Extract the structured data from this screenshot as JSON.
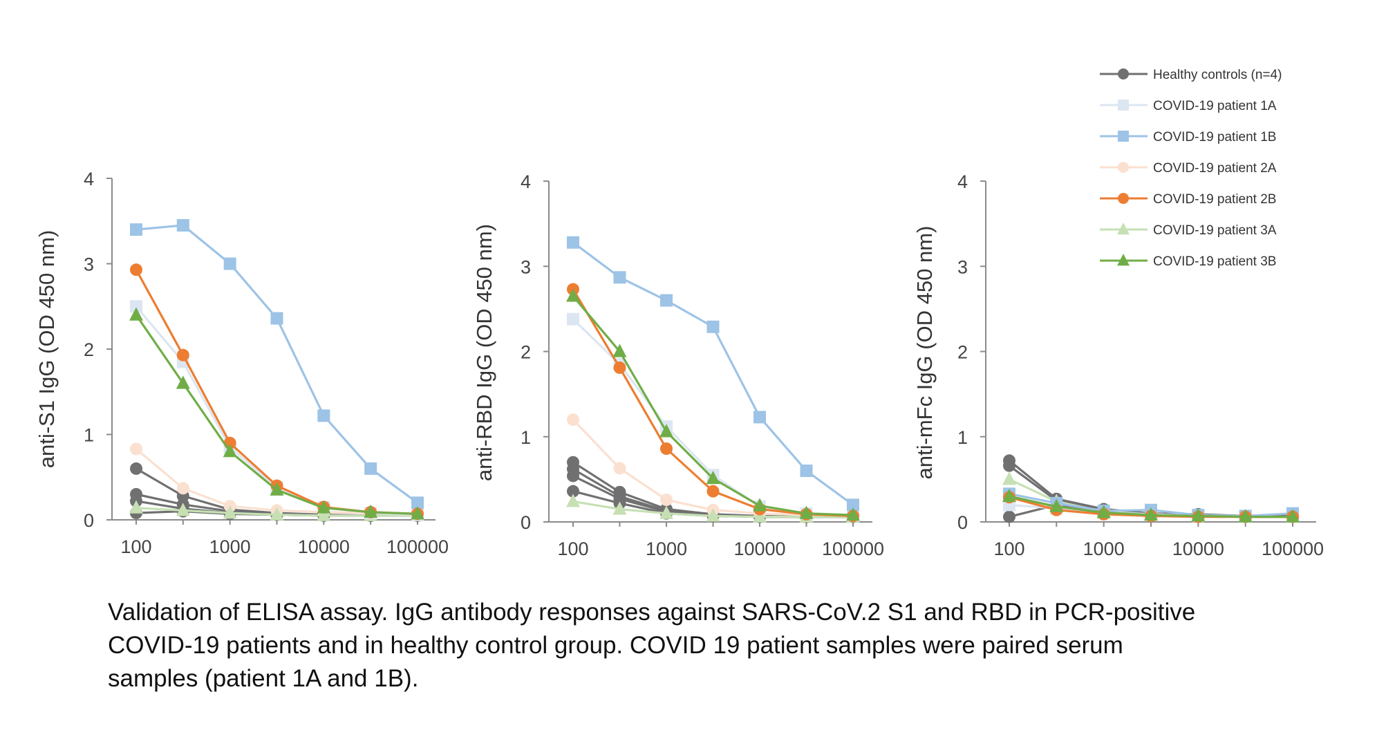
{
  "colors": {
    "healthy": "#707070",
    "p1A": "#dce6f2",
    "p1B": "#9dc3e6",
    "p2A": "#fbe0d0",
    "p2B": "#ed7d31",
    "p3A": "#c6e0b4",
    "p3B": "#70ad47",
    "axis": "#8a8a8a"
  },
  "legend": [
    {
      "key": "healthy",
      "label": "Healthy controls (n=4)",
      "marker": "circle",
      "color": "#707070"
    },
    {
      "key": "p1A",
      "label": "COVID-19 patient 1A",
      "marker": "square",
      "color": "#dce6f2"
    },
    {
      "key": "p1B",
      "label": "COVID-19 patient 1B",
      "marker": "square",
      "color": "#9dc3e6"
    },
    {
      "key": "p2A",
      "label": "COVID-19 patient 2A",
      "marker": "circle",
      "color": "#fbe0d0"
    },
    {
      "key": "p2B",
      "label": "COVID-19 patient 2B",
      "marker": "circle",
      "color": "#ed7d31"
    },
    {
      "key": "p3A",
      "label": "COVID-19 patient 3A",
      "marker": "triangle",
      "color": "#c6e0b4"
    },
    {
      "key": "p3B",
      "label": "COVID-19 patient 3B",
      "marker": "triangle",
      "color": "#70ad47"
    }
  ],
  "caption": [
    "Validation of ELISA assay. IgG antibody responses against SARS-CoV.2 S1 and RBD in PCR-positive",
    "COVID-19 patients and in healthy control group. COVID 19 patient samples were paired serum",
    "samples (patient 1A and 1B)."
  ],
  "chart_data": [
    {
      "type": "line",
      "title": "",
      "xlabel": "",
      "ylabel": "anti-S1 IgG (OD 450 nm)",
      "x": [
        100,
        316,
        1000,
        3162,
        10000,
        31623,
        100000
      ],
      "x_scale": "log",
      "x_ticks": [
        "100",
        "1000",
        "10000",
        "100000"
      ],
      "y_ticks": [
        "0",
        "1",
        "2",
        "3",
        "4"
      ],
      "ylim": [
        0,
        4
      ],
      "series": [
        {
          "key": "healthy",
          "values": [
            0.6,
            0.28,
            0.12,
            0.08,
            0.06,
            0.05,
            0.05
          ]
        },
        {
          "key": "healthy",
          "values": [
            0.3,
            0.18,
            0.1,
            0.07,
            0.05,
            0.05,
            0.05
          ]
        },
        {
          "key": "healthy",
          "values": [
            0.22,
            0.13,
            0.08,
            0.06,
            0.05,
            0.05,
            0.05
          ]
        },
        {
          "key": "healthy",
          "values": [
            0.08,
            0.1,
            0.07,
            0.06,
            0.05,
            0.05,
            0.05
          ]
        },
        {
          "key": "p1A",
          "values": [
            2.5,
            1.85,
            0.85,
            0.38,
            0.15,
            0.08,
            0.06
          ]
        },
        {
          "key": "p1B",
          "values": [
            3.4,
            3.45,
            3.0,
            2.36,
            1.22,
            0.6,
            0.2
          ]
        },
        {
          "key": "p2A",
          "values": [
            0.83,
            0.37,
            0.16,
            0.11,
            0.09,
            0.08,
            0.07
          ]
        },
        {
          "key": "p2B",
          "values": [
            2.93,
            1.93,
            0.9,
            0.4,
            0.15,
            0.09,
            0.07
          ]
        },
        {
          "key": "p3A",
          "values": [
            0.14,
            0.11,
            0.08,
            0.06,
            0.05,
            0.05,
            0.05
          ]
        },
        {
          "key": "p3B",
          "values": [
            2.4,
            1.6,
            0.8,
            0.35,
            0.14,
            0.09,
            0.07
          ]
        }
      ]
    },
    {
      "type": "line",
      "title": "",
      "xlabel": "",
      "ylabel": "anti-RBD IgG (OD 450 nm)",
      "x": [
        100,
        316,
        1000,
        3162,
        10000,
        31623,
        100000
      ],
      "x_scale": "log",
      "x_ticks": [
        "100",
        "1000",
        "10000",
        "100000"
      ],
      "y_ticks": [
        "0",
        "1",
        "2",
        "3",
        "4"
      ],
      "ylim": [
        0,
        4
      ],
      "series": [
        {
          "key": "healthy",
          "values": [
            0.7,
            0.35,
            0.15,
            0.09,
            0.07,
            0.06,
            0.06
          ]
        },
        {
          "key": "healthy",
          "values": [
            0.62,
            0.3,
            0.13,
            0.08,
            0.06,
            0.06,
            0.06
          ]
        },
        {
          "key": "healthy",
          "values": [
            0.54,
            0.27,
            0.12,
            0.08,
            0.06,
            0.06,
            0.06
          ]
        },
        {
          "key": "healthy",
          "values": [
            0.36,
            0.22,
            0.1,
            0.07,
            0.06,
            0.06,
            0.06
          ]
        },
        {
          "key": "p1A",
          "values": [
            2.38,
            1.85,
            1.12,
            0.55,
            0.18,
            0.1,
            0.08
          ]
        },
        {
          "key": "p1B",
          "values": [
            3.28,
            2.87,
            2.6,
            2.29,
            1.23,
            0.6,
            0.2
          ]
        },
        {
          "key": "p2A",
          "values": [
            1.2,
            0.63,
            0.26,
            0.14,
            0.1,
            0.08,
            0.07
          ]
        },
        {
          "key": "p2B",
          "values": [
            2.73,
            1.81,
            0.86,
            0.36,
            0.15,
            0.09,
            0.07
          ]
        },
        {
          "key": "p3A",
          "values": [
            0.24,
            0.15,
            0.1,
            0.07,
            0.06,
            0.06,
            0.06
          ]
        },
        {
          "key": "p3B",
          "values": [
            2.65,
            2.0,
            1.06,
            0.51,
            0.19,
            0.1,
            0.08
          ]
        }
      ]
    },
    {
      "type": "line",
      "title": "",
      "xlabel": "",
      "ylabel": "anti-mFc IgG (OD 450 nm)",
      "x": [
        100,
        316,
        1000,
        3162,
        10000,
        31623,
        100000
      ],
      "x_scale": "log",
      "x_ticks": [
        "100",
        "1000",
        "10000",
        "100000"
      ],
      "y_ticks": [
        "0",
        "1",
        "2",
        "3",
        "4"
      ],
      "ylim": [
        0,
        4
      ],
      "series": [
        {
          "key": "healthy",
          "values": [
            0.72,
            0.27,
            0.15,
            0.1,
            0.09,
            0.07,
            0.07
          ]
        },
        {
          "key": "healthy",
          "values": [
            0.66,
            0.25,
            0.14,
            0.09,
            0.08,
            0.07,
            0.07
          ]
        },
        {
          "key": "healthy",
          "values": [
            0.3,
            0.18,
            0.1,
            0.08,
            0.07,
            0.06,
            0.06
          ]
        },
        {
          "key": "healthy",
          "values": [
            0.06,
            0.2,
            0.11,
            0.08,
            0.07,
            0.06,
            0.06
          ]
        },
        {
          "key": "p1A",
          "values": [
            0.2,
            0.16,
            0.11,
            0.09,
            0.07,
            0.06,
            0.06
          ]
        },
        {
          "key": "p1B",
          "values": [
            0.33,
            0.22,
            0.13,
            0.14,
            0.08,
            0.07,
            0.1
          ]
        },
        {
          "key": "p2A",
          "values": [
            0.28,
            0.18,
            0.11,
            0.08,
            0.07,
            0.06,
            0.06
          ]
        },
        {
          "key": "p2B",
          "values": [
            0.29,
            0.14,
            0.09,
            0.07,
            0.06,
            0.06,
            0.06
          ]
        },
        {
          "key": "p3A",
          "values": [
            0.5,
            0.24,
            0.12,
            0.09,
            0.07,
            0.06,
            0.06
          ]
        },
        {
          "key": "p3B",
          "values": [
            0.3,
            0.18,
            0.11,
            0.08,
            0.07,
            0.06,
            0.06
          ]
        }
      ]
    }
  ]
}
